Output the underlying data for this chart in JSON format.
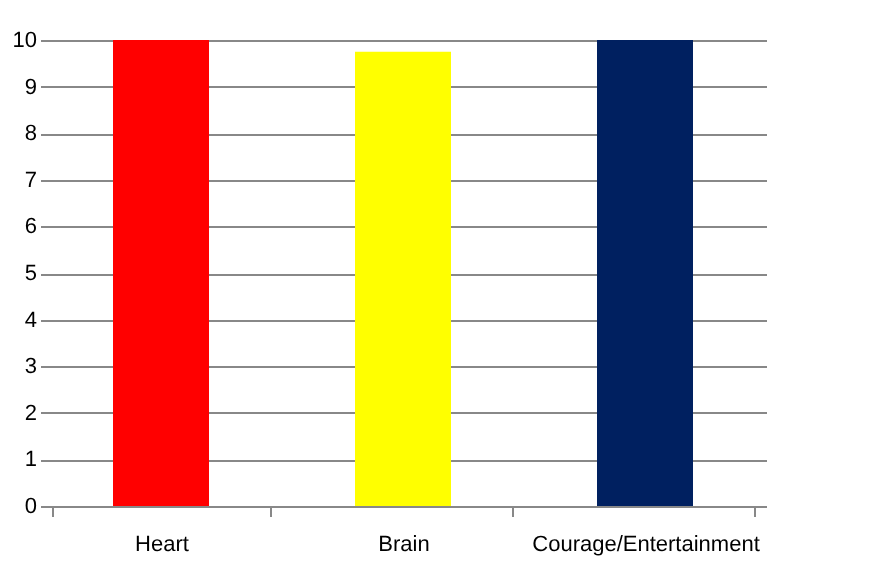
{
  "chart_data": {
    "type": "bar",
    "categories": [
      "Heart",
      "Brain",
      "Courage/Entertainment"
    ],
    "values": [
      10,
      9.75,
      10
    ],
    "colors": [
      "#ff0000",
      "#ffff00",
      "#002060"
    ],
    "ylim": [
      0,
      10
    ],
    "yticks": [
      0,
      1,
      2,
      3,
      4,
      5,
      6,
      7,
      8,
      9,
      10
    ],
    "grid": "y",
    "legend": false
  }
}
